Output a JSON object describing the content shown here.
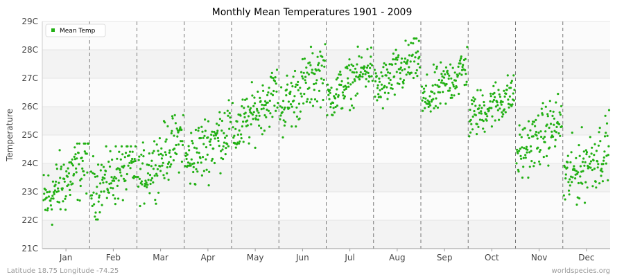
{
  "chart_data": {
    "type": "scatter",
    "title": "Monthly Mean Temperatures 1901 - 2009",
    "xlabel": "",
    "ylabel": "Temperature",
    "categories": [
      "Jan",
      "Feb",
      "Mar",
      "Apr",
      "May",
      "Jun",
      "Jul",
      "Aug",
      "Sep",
      "Oct",
      "Nov",
      "Dec"
    ],
    "ylim": [
      21,
      29
    ],
    "yticks": [
      "21C",
      "22C",
      "23C",
      "24C",
      "25C",
      "26C",
      "27C",
      "28C",
      "29C"
    ],
    "grid": "horizontal bands, dashed month separators",
    "legend_position": "top-left",
    "series": [
      {
        "name": "Mean Temp",
        "color": "#22b014",
        "years": [
          1901,
          2009
        ],
        "month_ranges": [
          {
            "month": "Jan",
            "min": 21.1,
            "max": 24.7,
            "start": 22.6,
            "end": 24.2
          },
          {
            "month": "Feb",
            "min": 21.3,
            "max": 24.6,
            "start": 23.1,
            "end": 24.0
          },
          {
            "month": "Mar",
            "min": 22.5,
            "max": 25.7,
            "start": 23.4,
            "end": 25.0
          },
          {
            "month": "Apr",
            "min": 22.8,
            "max": 26.3,
            "start": 24.0,
            "end": 25.3
          },
          {
            "month": "May",
            "min": 24.3,
            "max": 27.3,
            "start": 25.0,
            "end": 26.6
          },
          {
            "month": "Jun",
            "min": 24.9,
            "max": 28.2,
            "start": 25.9,
            "end": 27.4
          },
          {
            "month": "Jul",
            "min": 25.7,
            "max": 28.2,
            "start": 26.2,
            "end": 27.5
          },
          {
            "month": "Aug",
            "min": 25.7,
            "max": 28.4,
            "start": 26.5,
            "end": 27.8
          },
          {
            "month": "Sep",
            "min": 25.5,
            "max": 28.1,
            "start": 26.1,
            "end": 27.4
          },
          {
            "month": "Oct",
            "min": 24.6,
            "max": 27.1,
            "start": 25.6,
            "end": 26.5
          },
          {
            "month": "Nov",
            "min": 23.5,
            "max": 26.7,
            "start": 24.3,
            "end": 25.5
          },
          {
            "month": "Dec",
            "min": 22.4,
            "max": 26.0,
            "start": 23.4,
            "end": 24.6
          }
        ]
      }
    ]
  },
  "footer": {
    "location": "Latitude 18.75 Longitude -74.25",
    "source": "worldspecies.org"
  }
}
